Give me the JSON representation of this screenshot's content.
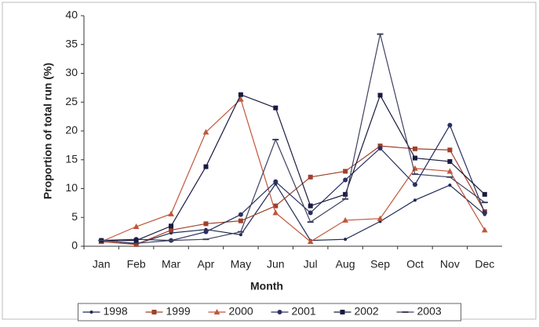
{
  "chart_data": {
    "type": "line",
    "x_label": "Month",
    "y_label": "Proportion of total run (%)",
    "categories": [
      "Jan",
      "Feb",
      "Mar",
      "Apr",
      "May",
      "Jun",
      "Jul",
      "Aug",
      "Sep",
      "Oct",
      "Nov",
      "Dec"
    ],
    "series": [
      {
        "name": "1998",
        "color": "#1f2a55",
        "marker": "dot",
        "values": [
          1.1,
          0.4,
          2.3,
          2.9,
          2,
          10.8,
          1,
          1.2,
          4.3,
          8,
          10.6,
          5.5
        ]
      },
      {
        "name": "1999",
        "color": "#a0402a",
        "marker": "square",
        "values": [
          0.8,
          0.3,
          2.8,
          3.9,
          4.4,
          7,
          12,
          13,
          17.4,
          16.9,
          16.7,
          6
        ]
      },
      {
        "name": "2000",
        "color": "#c0563a",
        "marker": "triangle",
        "values": [
          0.8,
          3.4,
          5.6,
          19.8,
          25.5,
          5.8,
          0.8,
          4.5,
          4.8,
          13.5,
          13,
          2.8
        ]
      },
      {
        "name": "2001",
        "color": "#2a3060",
        "marker": "circle",
        "values": [
          1,
          1.2,
          1,
          2.5,
          5.5,
          11.2,
          5.8,
          11.5,
          17,
          10.7,
          21,
          5.8
        ]
      },
      {
        "name": "2002",
        "color": "#1a1a40",
        "marker": "square",
        "values": [
          1,
          1,
          3.5,
          13.8,
          26.3,
          24,
          7,
          9,
          26.2,
          15.3,
          14.7,
          9
        ]
      },
      {
        "name": "2003",
        "color": "#404060",
        "marker": "dash",
        "values": [
          1,
          0.5,
          1,
          1.2,
          2.5,
          18.5,
          4.2,
          8.2,
          36.8,
          12.5,
          12,
          7.6
        ]
      }
    ],
    "ylim": [
      0,
      40
    ],
    "yticks": [
      0,
      5,
      10,
      15,
      20,
      25,
      30,
      35,
      40
    ],
    "grid": false,
    "legend": "bottom"
  }
}
